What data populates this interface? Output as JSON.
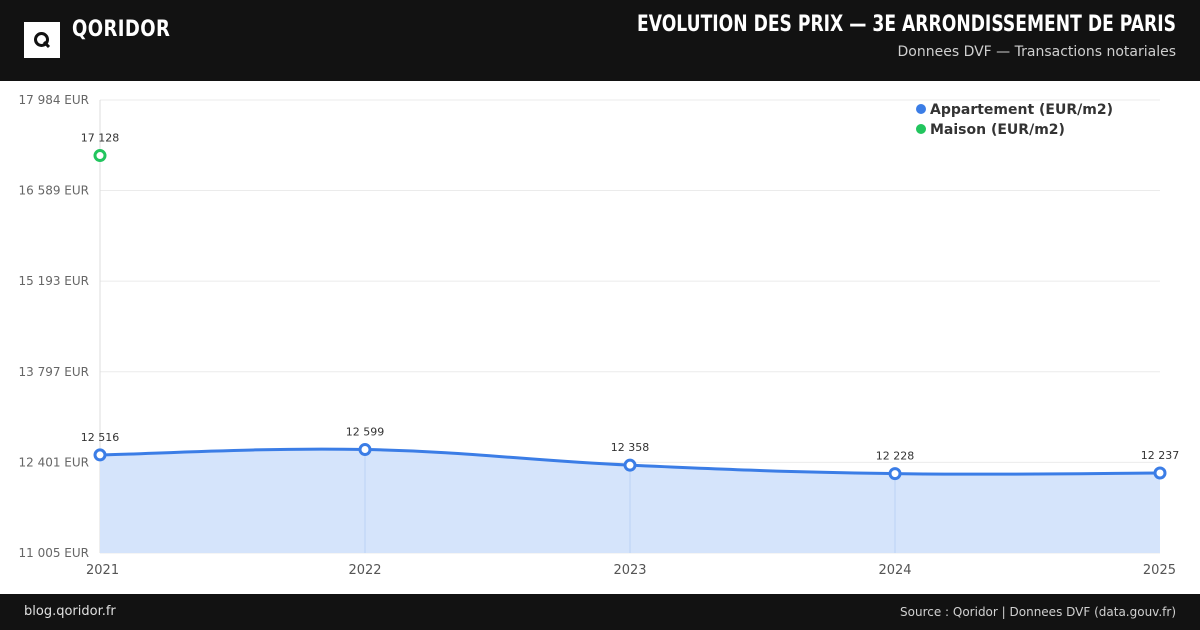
{
  "header": {
    "brand": "QORIDOR",
    "logo_letter": "Q",
    "title": "EVOLUTION DES PRIX — 3E ARRONDISSEMENT DE PARIS",
    "subtitle": "Donnees DVF — Transactions notariales"
  },
  "footer": {
    "site": "blog.qoridor.fr",
    "source": "Source : Qoridor | Donnees DVF (data.gouv.fr)"
  },
  "chart_data": {
    "type": "line",
    "x": [
      "2021",
      "2022",
      "2023",
      "2024",
      "2025"
    ],
    "yticks": [
      {
        "value": 11005,
        "label": "11 005 EUR"
      },
      {
        "value": 12401,
        "label": "12 401 EUR"
      },
      {
        "value": 13797,
        "label": "13 797 EUR"
      },
      {
        "value": 15193,
        "label": "15 193 EUR"
      },
      {
        "value": 16589,
        "label": "16 589 EUR"
      },
      {
        "value": 17984,
        "label": "17 984 EUR"
      }
    ],
    "ylim": [
      11005,
      17984
    ],
    "legend_position": "top-right",
    "grid": true,
    "series": [
      {
        "name": "Appartement (EUR/m2)",
        "color": "#3b7de6",
        "fill": "#d5e4fb",
        "values": [
          12516,
          12599,
          12358,
          12228,
          12237
        ],
        "labels": [
          "12 516",
          "12 599",
          "12 358",
          "12 228",
          "12 237"
        ]
      },
      {
        "name": "Maison (EUR/m2)",
        "color": "#22c55e",
        "values": [
          17128,
          null,
          null,
          null,
          null
        ],
        "labels": [
          "17 128",
          null,
          null,
          null,
          null
        ]
      }
    ]
  }
}
